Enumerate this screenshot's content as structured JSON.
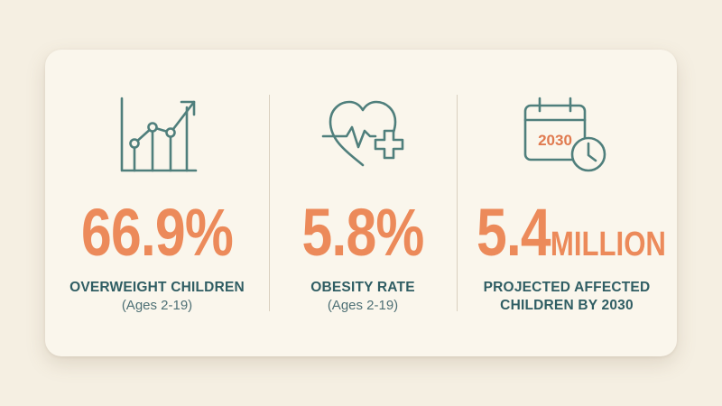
{
  "stats": [
    {
      "icon": "line-chart-icon",
      "value": "66.9%",
      "label": "OVERWEIGHT CHILDREN",
      "sub": "(Ages 2-19)"
    },
    {
      "icon": "heart-medical-icon",
      "value": "5.8%",
      "label": "OBESITY RATE",
      "sub": "(Ages 2-19)"
    },
    {
      "icon": "calendar-clock-icon",
      "value": "5.4",
      "unit": "MILLION",
      "label_line1": "PROJECTED AFFECTED",
      "label_line2": "CHILDREN BY 2030",
      "calendar_year": "2030"
    }
  ],
  "colors": {
    "accent": "#ec8a5a",
    "text_primary": "#2f5d63",
    "icon_stroke": "#4f7f7c",
    "background": "#f5efe2",
    "card": "#faf6ec"
  }
}
